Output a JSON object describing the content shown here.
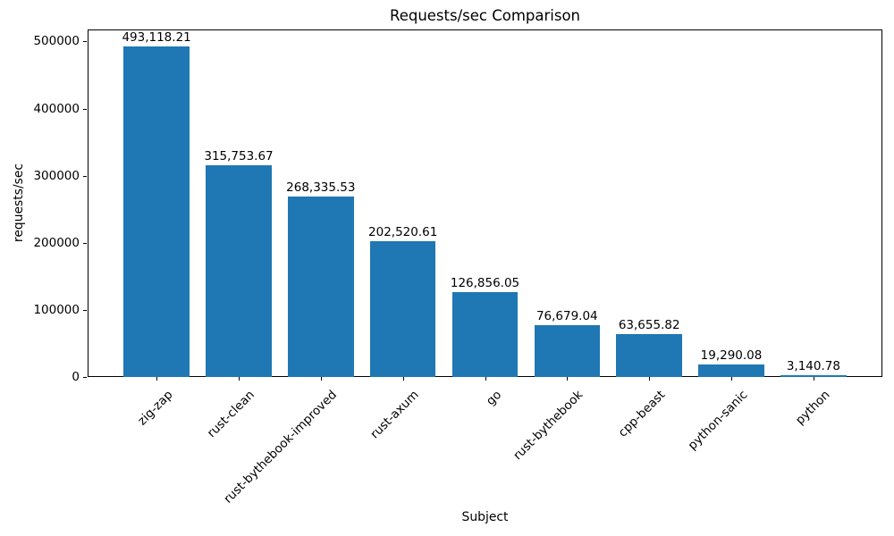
{
  "chart_data": {
    "type": "bar",
    "title": "Requests/sec Comparison",
    "xlabel": "Subject",
    "ylabel": "requests/sec",
    "categories": [
      "zig-zap",
      "rust-clean",
      "rust-bythebook-improved",
      "rust-axum",
      "go",
      "rust-bythebook",
      "cpp-beast",
      "python-sanic",
      "python"
    ],
    "values": [
      493118.21,
      315753.67,
      268335.53,
      202520.61,
      126856.05,
      76679.04,
      63655.82,
      19290.08,
      3140.78
    ],
    "value_labels": [
      "493,118.21",
      "315,753.67",
      "268,335.53",
      "202,520.61",
      "126,856.05",
      "76,679.04",
      "63,655.82",
      "19,290.08",
      "3,140.78"
    ],
    "yticks": [
      0,
      100000,
      200000,
      300000,
      400000,
      500000
    ],
    "ytick_labels": [
      "0",
      "100000",
      "200000",
      "300000",
      "400000",
      "500000"
    ],
    "ylim": [
      0,
      517774
    ],
    "bar_color": "#1f77b4",
    "bar_width_fraction": 0.8,
    "xtick_rotation": 45,
    "grid": false,
    "legend": null
  }
}
